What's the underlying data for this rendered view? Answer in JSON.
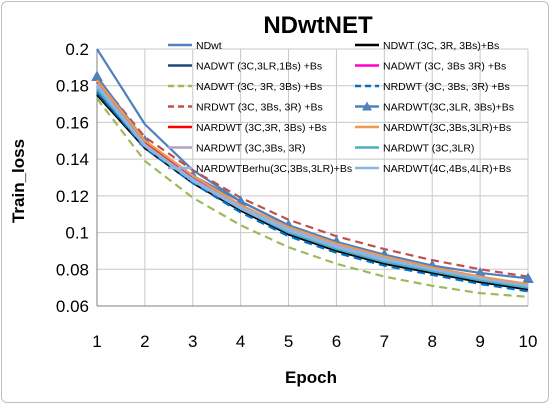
{
  "chart_data": {
    "type": "line",
    "title": "NDwtNET",
    "xlabel": "Epoch",
    "ylabel": "Train_loss",
    "x": [
      1,
      2,
      3,
      4,
      5,
      6,
      7,
      8,
      9,
      10
    ],
    "xlim": [
      1,
      10
    ],
    "ylim": [
      0.06,
      0.2
    ],
    "yticks": [
      "0.06",
      "0.08",
      "0.1",
      "0.12",
      "0.14",
      "0.16",
      "0.18",
      "0.2"
    ],
    "xticks": [
      "1",
      "2",
      "3",
      "4",
      "5",
      "6",
      "7",
      "8",
      "9",
      "10"
    ],
    "grid": true,
    "legend_position": "top-right",
    "series": [
      {
        "name": "NDwt",
        "color": "#4f81bd",
        "dash": "solid",
        "marker": "none",
        "values": [
          0.2,
          0.159,
          0.134,
          0.117,
          0.104,
          0.095,
          0.087,
          0.08,
          0.074,
          0.07
        ]
      },
      {
        "name": "NDWT (3C, 3R, 3Bs)+Bs",
        "color": "#000000",
        "dash": "solid",
        "marker": "none",
        "values": [
          0.175,
          0.146,
          0.127,
          0.112,
          0.099,
          0.09,
          0.083,
          0.078,
          0.073,
          0.069
        ]
      },
      {
        "name": "NADWT (3C,3LR,1Bs) +Bs",
        "color": "#1f497d",
        "dash": "solid",
        "marker": "none",
        "values": [
          0.176,
          0.147,
          0.128,
          0.113,
          0.1,
          0.091,
          0.084,
          0.079,
          0.074,
          0.07
        ]
      },
      {
        "name": "NADWT (3C, 3Bs 3R) +Bs",
        "color": "#ff00cc",
        "dash": "solid",
        "marker": "none",
        "values": [
          0.18,
          0.149,
          0.13,
          0.115,
          0.102,
          0.093,
          0.086,
          0.08,
          0.075,
          0.071
        ]
      },
      {
        "name": "NADWT (3C, 3R, 3Bs) +Bs",
        "color": "#9bbb59",
        "dash": "dash",
        "marker": "none",
        "values": [
          0.173,
          0.139,
          0.119,
          0.104,
          0.092,
          0.083,
          0.076,
          0.071,
          0.067,
          0.065
        ],
        "legend_text_color": "#c0504d"
      },
      {
        "name": "NRDWT (3C, 3Bs, 3R) +Bs",
        "color": "#0070c0",
        "dash": "dash",
        "marker": "none",
        "values": [
          0.177,
          0.146,
          0.127,
          0.111,
          0.098,
          0.089,
          0.082,
          0.077,
          0.072,
          0.068
        ]
      },
      {
        "name": "NRDWT (3C, 3Bs, 3R) +Bs",
        "color": "#c0504d",
        "dash": "dash",
        "marker": "none",
        "values": [
          0.184,
          0.152,
          0.134,
          0.119,
          0.107,
          0.098,
          0.091,
          0.085,
          0.08,
          0.076
        ]
      },
      {
        "name": "NARDWT(3C,3LR, 3Bs)+Bs",
        "color": "#4f81bd",
        "dash": "solid",
        "marker": "triangle",
        "values": [
          0.185,
          0.15,
          0.131,
          0.117,
          0.104,
          0.095,
          0.088,
          0.082,
          0.078,
          0.075
        ]
      },
      {
        "name": "NARDWT (3C,3R, 3Bs) +Bs",
        "color": "#ff0000",
        "dash": "solid",
        "marker": "none",
        "values": [
          0.182,
          0.149,
          0.129,
          0.114,
          0.101,
          0.092,
          0.085,
          0.08,
          0.075,
          0.071
        ]
      },
      {
        "name": "NARDWT(3C,3Bs,3LR)+Bs",
        "color": "#f79646",
        "dash": "solid",
        "marker": "none",
        "values": [
          0.183,
          0.15,
          0.131,
          0.115,
          0.103,
          0.094,
          0.087,
          0.081,
          0.076,
          0.072
        ]
      },
      {
        "name": "NARDWT (3C,3Bs, 3R)",
        "color": "#b3a2c7",
        "dash": "solid",
        "marker": "none",
        "values": [
          0.179,
          0.148,
          0.129,
          0.114,
          0.101,
          0.092,
          0.085,
          0.079,
          0.074,
          0.07
        ]
      },
      {
        "name": "NARDWT (3C,3LR)",
        "color": "#4bacc6",
        "dash": "solid",
        "marker": "none",
        "values": [
          0.178,
          0.147,
          0.128,
          0.113,
          0.1,
          0.091,
          0.084,
          0.079,
          0.074,
          0.07
        ]
      },
      {
        "name": "NARDWTBerhu(3C,3Bs,3LR)+Bs",
        "color": "#95b3d7",
        "dash": "solid",
        "marker": "none",
        "values": [
          0.181,
          0.148,
          0.129,
          0.114,
          0.102,
          0.093,
          0.086,
          0.08,
          0.075,
          0.071
        ]
      },
      {
        "name": "NARDWT(4C,4Bs,4LR)+Bs",
        "color": "#8eb4e3",
        "dash": "solid",
        "marker": "none",
        "values": [
          0.18,
          0.147,
          0.128,
          0.113,
          0.101,
          0.092,
          0.085,
          0.08,
          0.075,
          0.071
        ]
      }
    ]
  }
}
